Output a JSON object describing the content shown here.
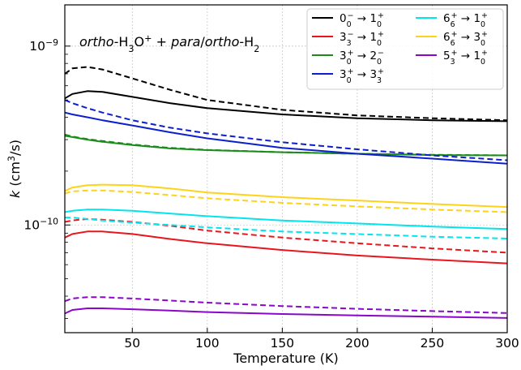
{
  "chart_data": {
    "type": "line",
    "annotation": {
      "parts": [
        {
          "text": "ortho",
          "style": "italic"
        },
        {
          "text": "-H",
          "style": "normal"
        },
        {
          "text": "3",
          "style": "sub"
        },
        {
          "text": "O",
          "style": "normal"
        },
        {
          "text": "+",
          "style": "sup"
        },
        {
          "text": " + ",
          "style": "normal"
        },
        {
          "text": "para",
          "style": "italic"
        },
        {
          "text": "/",
          "style": "normal"
        },
        {
          "text": "ortho",
          "style": "italic"
        },
        {
          "text": "-H",
          "style": "normal"
        },
        {
          "text": "2",
          "style": "sub"
        }
      ]
    },
    "xlabel": "Temperature (K)",
    "ylabel": {
      "parts": [
        {
          "text": "k",
          "style": "italic"
        },
        {
          "text": " (cm",
          "style": "normal"
        },
        {
          "text": "3",
          "style": "sup"
        },
        {
          "text": "/s)",
          "style": "normal"
        }
      ]
    },
    "xlim": [
      5,
      300
    ],
    "ylim": [
      2.5e-11,
      1.7e-09
    ],
    "yscale": "log",
    "grid": true,
    "x_ticks": [
      {
        "value": 50,
        "label": "50"
      },
      {
        "value": 100,
        "label": "100"
      },
      {
        "value": 150,
        "label": "150"
      },
      {
        "value": 200,
        "label": "200"
      },
      {
        "value": 250,
        "label": "250"
      },
      {
        "value": 300,
        "label": "300"
      }
    ],
    "y_ticks": [
      {
        "value": 1e-10,
        "base": "10",
        "exp": "−10"
      },
      {
        "value": 1e-09,
        "base": "10",
        "exp": "−9"
      }
    ],
    "legend_position": "top-right",
    "x": [
      5,
      10,
      20,
      30,
      50,
      75,
      100,
      150,
      200,
      250,
      300
    ],
    "series": [
      {
        "name": "0_0^- → 1_0^+",
        "legend": {
          "a": "0",
          "asub": "0",
          "asup": "−",
          "b": "1",
          "bsub": "0",
          "bsup": "+"
        },
        "color": "#000000",
        "solid": [
          5.1e-10,
          5.4e-10,
          5.6e-10,
          5.55e-10,
          5.2e-10,
          4.8e-10,
          4.5e-10,
          4.15e-10,
          3.95e-10,
          3.85e-10,
          3.8e-10
        ],
        "dashed": [
          7e-10,
          7.5e-10,
          7.65e-10,
          7.4e-10,
          6.6e-10,
          5.7e-10,
          5e-10,
          4.4e-10,
          4.1e-10,
          3.95e-10,
          3.85e-10
        ]
      },
      {
        "name": "3_3^- → 1_0^+",
        "legend": {
          "a": "3",
          "asub": "3",
          "asup": "−",
          "b": "1",
          "bsub": "0",
          "bsup": "+"
        },
        "color": "#e8161c",
        "solid": [
          8.5e-11,
          8.9e-11,
          9.2e-11,
          9.2e-11,
          8.9e-11,
          8.35e-11,
          7.9e-11,
          7.25e-11,
          6.75e-11,
          6.4e-11,
          6.1e-11
        ],
        "dashed": [
          1.04e-10,
          1.06e-10,
          1.08e-10,
          1.07e-10,
          1.04e-10,
          9.9e-11,
          9.3e-11,
          8.5e-11,
          7.9e-11,
          7.4e-11,
          7e-11
        ]
      },
      {
        "name": "3_0^+ → 2_0^-",
        "legend": {
          "a": "3",
          "asub": "0",
          "asup": "+",
          "b": "2",
          "bsub": "0",
          "bsup": "−"
        },
        "color": "#1b8b1b",
        "solid": [
          3.15e-10,
          3.1e-10,
          3e-10,
          2.92e-10,
          2.8e-10,
          2.68e-10,
          2.62e-10,
          2.55e-10,
          2.5e-10,
          2.46e-10,
          2.45e-10
        ],
        "dashed": [
          3.2e-10,
          3.12e-10,
          3.02e-10,
          2.95e-10,
          2.82e-10,
          2.7e-10,
          2.63e-10,
          2.55e-10,
          2.5e-10,
          2.47e-10,
          2.45e-10
        ]
      },
      {
        "name": "3_0^+ → 3_3^+",
        "legend": {
          "a": "3",
          "asub": "0",
          "asup": "+",
          "b": "3",
          "bsub": "3",
          "bsup": "+"
        },
        "color": "#0d1fcc",
        "solid": [
          4.25e-10,
          4.15e-10,
          4e-10,
          3.85e-10,
          3.6e-10,
          3.3e-10,
          3.05e-10,
          2.7e-10,
          2.5e-10,
          2.35e-10,
          2.2e-10
        ],
        "dashed": [
          5e-10,
          4.8e-10,
          4.5e-10,
          4.25e-10,
          3.85e-10,
          3.5e-10,
          3.25e-10,
          2.9e-10,
          2.65e-10,
          2.45e-10,
          2.3e-10
        ]
      },
      {
        "name": "6_6^+ → 1_0^+",
        "legend": {
          "a": "6",
          "asub": "6",
          "asup": "+",
          "b": "1",
          "bsub": "0",
          "bsup": "+"
        },
        "color": "#00e5ee",
        "solid": [
          1.18e-10,
          1.2e-10,
          1.22e-10,
          1.22e-10,
          1.2e-10,
          1.16e-10,
          1.12e-10,
          1.06e-10,
          1.02e-10,
          9.8e-11,
          9.5e-11
        ],
        "dashed": [
          1.1e-10,
          1.1e-10,
          1.08e-10,
          1.06e-10,
          1.03e-10,
          1e-10,
          9.7e-11,
          9.2e-11,
          8.9e-11,
          8.6e-11,
          8.4e-11
        ]
      },
      {
        "name": "6_6^+ → 3_0^+",
        "legend": {
          "a": "6",
          "asub": "6",
          "asup": "+",
          "b": "3",
          "bsub": "0",
          "bsup": "+"
        },
        "color": "#ffd21a",
        "solid": [
          1.55e-10,
          1.62e-10,
          1.67e-10,
          1.68e-10,
          1.67e-10,
          1.6e-10,
          1.52e-10,
          1.43e-10,
          1.37e-10,
          1.31e-10,
          1.26e-10
        ],
        "dashed": [
          1.5e-10,
          1.54e-10,
          1.56e-10,
          1.56e-10,
          1.53e-10,
          1.47e-10,
          1.41e-10,
          1.33e-10,
          1.27e-10,
          1.22e-10,
          1.18e-10
        ]
      },
      {
        "name": "5_3^+ → 1_0^+",
        "legend": {
          "a": "5",
          "asub": "3",
          "asup": "+",
          "b": "1",
          "bsub": "0",
          "bsup": "+"
        },
        "color": "#8a06c8",
        "solid": [
          3.2e-11,
          3.35e-11,
          3.42e-11,
          3.42e-11,
          3.38e-11,
          3.32e-11,
          3.26e-11,
          3.18e-11,
          3.12e-11,
          3.07e-11,
          3.02e-11
        ],
        "dashed": [
          3.75e-11,
          3.88e-11,
          3.95e-11,
          3.95e-11,
          3.88e-11,
          3.78e-11,
          3.68e-11,
          3.52e-11,
          3.4e-11,
          3.3e-11,
          3.22e-11
        ]
      }
    ]
  }
}
